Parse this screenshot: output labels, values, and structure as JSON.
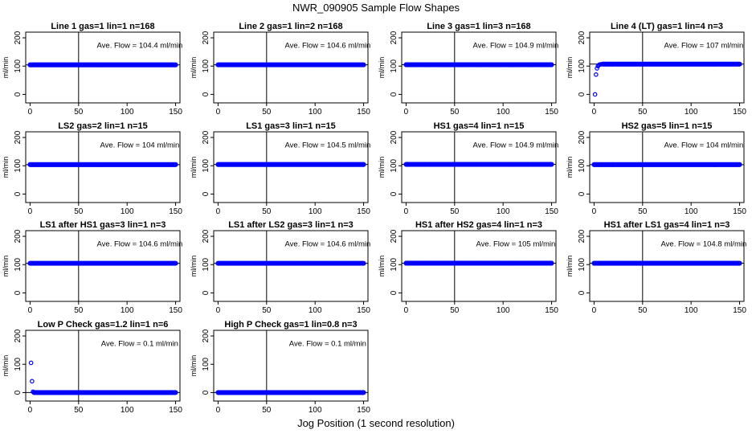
{
  "figure": {
    "title": "NWR_090905  Sample Flow Shapes",
    "xlabel": "Jog Position (1 second resolution)"
  },
  "style": {
    "point_color": "#0000ff",
    "axis_color": "#000000",
    "background": "#ffffff"
  },
  "chart_data": [
    {
      "type": "scatter",
      "title": "Line 1 gas=1 lin=1 n=168",
      "ylabel": "ml/min",
      "xlim": [
        0,
        150
      ],
      "ylim": [
        0,
        200
      ],
      "xticks": [
        0,
        50,
        100,
        150
      ],
      "yticks": [
        0,
        100,
        200
      ],
      "vline_x": 50,
      "hline_y": 104.4,
      "annotation": "Ave. Flow =  104.4  ml/min",
      "series": [
        {
          "x_start": 0,
          "x_end": 150,
          "x_step": 1,
          "y": 104.4
        }
      ]
    },
    {
      "type": "scatter",
      "title": "Line 2 gas=1 lin=2 n=168",
      "ylabel": "ml/min",
      "xlim": [
        0,
        150
      ],
      "ylim": [
        0,
        200
      ],
      "xticks": [
        0,
        50,
        100,
        150
      ],
      "yticks": [
        0,
        100,
        200
      ],
      "vline_x": 50,
      "hline_y": 104.6,
      "annotation": "Ave. Flow =  104.6  ml/min",
      "series": [
        {
          "x_start": 0,
          "x_end": 150,
          "x_step": 1,
          "y": 104.6
        }
      ]
    },
    {
      "type": "scatter",
      "title": "Line 3 gas=1 lin=3 n=168",
      "ylabel": "ml/min",
      "xlim": [
        0,
        150
      ],
      "ylim": [
        0,
        200
      ],
      "xticks": [
        0,
        50,
        100,
        150
      ],
      "yticks": [
        0,
        100,
        200
      ],
      "vline_x": 50,
      "hline_y": 104.9,
      "annotation": "Ave. Flow =  104.9  ml/min",
      "series": [
        {
          "x_start": 0,
          "x_end": 150,
          "x_step": 1,
          "y": 104.9
        }
      ]
    },
    {
      "type": "scatter",
      "title": "Line 4 (LT) gas=1 lin=4 n=3",
      "ylabel": "ml/min",
      "xlim": [
        0,
        150
      ],
      "ylim": [
        0,
        200
      ],
      "xticks": [
        0,
        50,
        100,
        150
      ],
      "yticks": [
        0,
        100,
        200
      ],
      "vline_x": 50,
      "hline_y": 107,
      "annotation": "Ave. Flow =  107  ml/min",
      "series": [
        {
          "x_start": 0,
          "x_end": 150,
          "x_step": 1,
          "y": 107,
          "early_points": [
            [
              1,
              0
            ],
            [
              2,
              70
            ],
            [
              3,
              92
            ],
            [
              4,
              100
            ],
            [
              5,
              104
            ],
            [
              6,
              106
            ],
            [
              7,
              106
            ],
            [
              8,
              107
            ]
          ]
        }
      ]
    },
    {
      "type": "scatter",
      "title": "LS2 gas=2 lin=1 n=15",
      "ylabel": "ml/min",
      "xlim": [
        0,
        150
      ],
      "ylim": [
        0,
        200
      ],
      "xticks": [
        0,
        50,
        100,
        150
      ],
      "yticks": [
        0,
        100,
        200
      ],
      "vline_x": 50,
      "hline_y": 104,
      "annotation": "Ave. Flow =  104  ml/min",
      "series": [
        {
          "x_start": 0,
          "x_end": 150,
          "x_step": 1,
          "y": 104
        }
      ]
    },
    {
      "type": "scatter",
      "title": "LS1 gas=3 lin=1 n=15",
      "ylabel": "ml/min",
      "xlim": [
        0,
        150
      ],
      "ylim": [
        0,
        200
      ],
      "xticks": [
        0,
        50,
        100,
        150
      ],
      "yticks": [
        0,
        100,
        200
      ],
      "vline_x": 50,
      "hline_y": 104.5,
      "annotation": "Ave. Flow =  104.5  ml/min",
      "series": [
        {
          "x_start": 0,
          "x_end": 150,
          "x_step": 1,
          "y": 104.5
        }
      ]
    },
    {
      "type": "scatter",
      "title": "HS1 gas=4 lin=1 n=15",
      "ylabel": "ml/min",
      "xlim": [
        0,
        150
      ],
      "ylim": [
        0,
        200
      ],
      "xticks": [
        0,
        50,
        100,
        150
      ],
      "yticks": [
        0,
        100,
        200
      ],
      "vline_x": 50,
      "hline_y": 104.9,
      "annotation": "Ave. Flow =  104.9  ml/min",
      "series": [
        {
          "x_start": 0,
          "x_end": 150,
          "x_step": 1,
          "y": 104.9
        }
      ]
    },
    {
      "type": "scatter",
      "title": "HS2 gas=5 lin=1 n=15",
      "ylabel": "ml/min",
      "xlim": [
        0,
        150
      ],
      "ylim": [
        0,
        200
      ],
      "xticks": [
        0,
        50,
        100,
        150
      ],
      "yticks": [
        0,
        100,
        200
      ],
      "vline_x": 50,
      "hline_y": 104,
      "annotation": "Ave. Flow =  104  ml/min",
      "series": [
        {
          "x_start": 0,
          "x_end": 150,
          "x_step": 1,
          "y": 104
        }
      ]
    },
    {
      "type": "scatter",
      "title": "LS1 after HS1 gas=3 lin=1 n=3",
      "ylabel": "ml/min",
      "xlim": [
        0,
        150
      ],
      "ylim": [
        0,
        200
      ],
      "xticks": [
        0,
        50,
        100,
        150
      ],
      "yticks": [
        0,
        100,
        200
      ],
      "vline_x": 50,
      "hline_y": 104.6,
      "annotation": "Ave. Flow =  104.6  ml/min",
      "series": [
        {
          "x_start": 0,
          "x_end": 150,
          "x_step": 1,
          "y": 104.6
        }
      ]
    },
    {
      "type": "scatter",
      "title": "LS1 after LS2 gas=3 lin=1 n=3",
      "ylabel": "ml/min",
      "xlim": [
        0,
        150
      ],
      "ylim": [
        0,
        200
      ],
      "xticks": [
        0,
        50,
        100,
        150
      ],
      "yticks": [
        0,
        100,
        200
      ],
      "vline_x": 50,
      "hline_y": 104.6,
      "annotation": "Ave. Flow =  104.6  ml/min",
      "series": [
        {
          "x_start": 0,
          "x_end": 150,
          "x_step": 1,
          "y": 104.6
        }
      ]
    },
    {
      "type": "scatter",
      "title": "HS1 after HS2 gas=4 lin=1 n=3",
      "ylabel": "ml/min",
      "xlim": [
        0,
        150
      ],
      "ylim": [
        0,
        200
      ],
      "xticks": [
        0,
        50,
        100,
        150
      ],
      "yticks": [
        0,
        100,
        200
      ],
      "vline_x": 50,
      "hline_y": 105,
      "annotation": "Ave. Flow =  105  ml/min",
      "series": [
        {
          "x_start": 0,
          "x_end": 150,
          "x_step": 1,
          "y": 105
        }
      ]
    },
    {
      "type": "scatter",
      "title": "HS1 after LS1 gas=4 lin=1 n=3",
      "ylabel": "ml/min",
      "xlim": [
        0,
        150
      ],
      "ylim": [
        0,
        200
      ],
      "xticks": [
        0,
        50,
        100,
        150
      ],
      "yticks": [
        0,
        100,
        200
      ],
      "vline_x": 50,
      "hline_y": 104.8,
      "annotation": "Ave. Flow =  104.8  ml/min",
      "series": [
        {
          "x_start": 0,
          "x_end": 150,
          "x_step": 1,
          "y": 104.8
        }
      ]
    },
    {
      "type": "scatter",
      "title": "Low P Check gas=1.2 lin=1 n=6",
      "ylabel": "ml/min",
      "xlim": [
        0,
        150
      ],
      "ylim": [
        0,
        200
      ],
      "xticks": [
        0,
        50,
        100,
        150
      ],
      "yticks": [
        0,
        100,
        200
      ],
      "vline_x": 50,
      "hline_y": 0.1,
      "annotation": "Ave. Flow =  0.1  ml/min",
      "series": [
        {
          "x_start": 0,
          "x_end": 150,
          "x_step": 1,
          "y": 0.1,
          "early_points": [
            [
              1,
              105
            ],
            [
              2,
              40
            ],
            [
              3,
              3
            ]
          ]
        }
      ]
    },
    {
      "type": "scatter",
      "title": "High P Check gas=1 lin=0.8 n=3",
      "ylabel": "ml/min",
      "xlim": [
        0,
        150
      ],
      "ylim": [
        0,
        200
      ],
      "xticks": [
        0,
        50,
        100,
        150
      ],
      "yticks": [
        0,
        100,
        200
      ],
      "vline_x": 50,
      "hline_y": 0.1,
      "annotation": "Ave. Flow =  0.1  ml/min",
      "series": [
        {
          "x_start": 0,
          "x_end": 150,
          "x_step": 1,
          "y": 0.1
        }
      ]
    }
  ]
}
